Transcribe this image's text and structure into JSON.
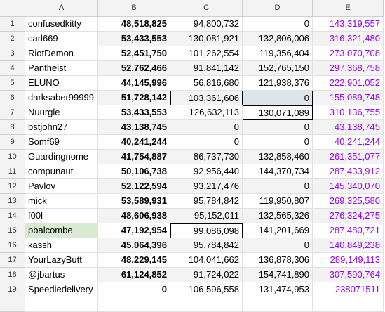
{
  "table": {
    "columns": [
      "A",
      "B",
      "C",
      "D",
      "E"
    ],
    "row_numbers": [
      1,
      2,
      3,
      4,
      5,
      6,
      7,
      8,
      9,
      10,
      11,
      12,
      13,
      14,
      15,
      16,
      17,
      18,
      19
    ],
    "rows": [
      [
        "confusedkitty",
        "48,518,825",
        "94,800,732",
        "0",
        "143,319,557"
      ],
      [
        "carl669",
        "53,433,553",
        "130,081,921",
        "132,806,006",
        "316,321,480"
      ],
      [
        "RiotDemon",
        "52,451,750",
        "101,262,554",
        "119,356,404",
        "273,070,708"
      ],
      [
        "Pantheist",
        "52,762,466",
        "91,841,142",
        "152,765,150",
        "297,368,758"
      ],
      [
        "ELUNO",
        "44,145,996",
        "56,816,680",
        "121,938,376",
        "222,901,052"
      ],
      [
        "darksaber99999",
        "51,728,142",
        "103,361,606",
        "0",
        "155,089,748"
      ],
      [
        "Nuurgle",
        "53,433,553",
        "126,632,113",
        "130,071,089",
        "310,136,755"
      ],
      [
        "bstjohn27",
        "43,138,745",
        "0",
        "0",
        "43,138,745"
      ],
      [
        "Somf69",
        "40,241,244",
        "0",
        "0",
        "40,241,244"
      ],
      [
        "Guardingnome",
        "41,754,887",
        "86,737,730",
        "132,858,460",
        "261,351,077"
      ],
      [
        "compunaut",
        "50,106,738",
        "92,956,440",
        "144,370,734",
        "287,433,912"
      ],
      [
        "Pavlov",
        "52,122,594",
        "93,217,476",
        "0",
        "145,340,070"
      ],
      [
        "mick",
        "53,589,931",
        "95,784,842",
        "119,950,807",
        "269,325,580"
      ],
      [
        "f00l",
        "48,606,938",
        "95,152,011",
        "132,565,326",
        "276,324,275"
      ],
      [
        "pbalcombe",
        "47,192,954",
        "99,086,098",
        "141,201,669",
        "287,480,721"
      ],
      [
        "kassh",
        "45,064,396",
        "95,784,842",
        "0",
        "140,849,238"
      ],
      [
        "YourLazyButt",
        "48,229,145",
        "104,041,662",
        "136,878,306",
        "289,149,113"
      ],
      [
        "@jbartus",
        "61,124,852",
        "91,724,022",
        "154,741,890",
        "307,590,764"
      ],
      [
        "Speediedelivery",
        "0",
        "106,596,558",
        "131,474,953",
        "238071511"
      ]
    ]
  }
}
